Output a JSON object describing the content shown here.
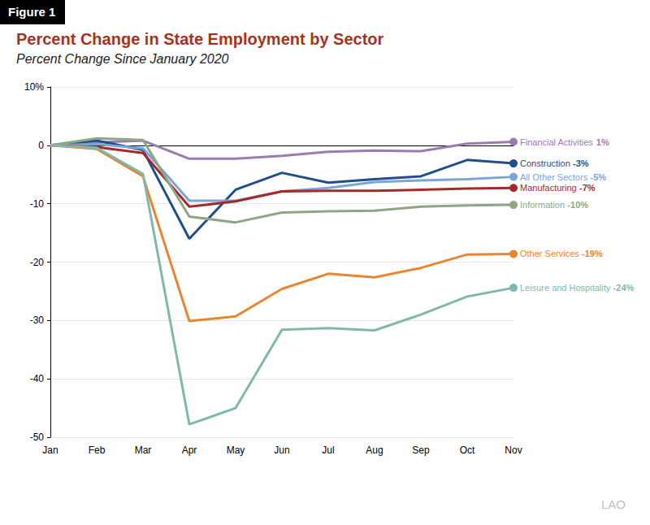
{
  "chart_data": {
    "type": "line",
    "figure_label": "Figure 1",
    "title": "Percent Change in State Employment by Sector",
    "subtitle": "Percent Change Since January 2020",
    "logo": "LAO",
    "categories": [
      "Jan",
      "Feb",
      "Mar",
      "Apr",
      "May",
      "Jun",
      "Jul",
      "Aug",
      "Sep",
      "Oct",
      "Nov"
    ],
    "series": [
      {
        "name": "Financial Activities",
        "color": "#9b7bb0",
        "values": [
          0,
          0.5,
          0.8,
          -2.3,
          -2.3,
          -1.8,
          -1.1,
          -0.9,
          -1.0,
          0.3,
          0.6
        ],
        "value_labels": [
          null,
          null,
          null,
          null,
          null,
          null,
          null,
          null,
          null,
          null,
          "1%"
        ]
      },
      {
        "name": "Construction",
        "color": "#1f4e8c",
        "values": [
          0,
          0.8,
          -0.8,
          -16,
          -7.6,
          -4.7,
          -6.4,
          -5.8,
          -5.3,
          -2.5,
          -3.1
        ],
        "value_labels": [
          null,
          null,
          null,
          null,
          null,
          null,
          null,
          null,
          null,
          null,
          "-3%"
        ]
      },
      {
        "name": "All Other Sectors",
        "color": "#7aa5d8",
        "values": [
          0,
          0.2,
          -0.5,
          -9.5,
          -9.5,
          -7.9,
          -7.3,
          -6.3,
          -6.0,
          -5.8,
          -5.4
        ],
        "value_labels": [
          null,
          null,
          null,
          null,
          null,
          null,
          null,
          null,
          null,
          null,
          "-5%"
        ]
      },
      {
        "name": "Manufacturing",
        "color": "#a32a2a",
        "values": [
          0,
          -0.3,
          -1.3,
          -10.5,
          -9.6,
          -7.9,
          -7.8,
          -7.8,
          -7.6,
          -7.4,
          -7.3
        ],
        "value_labels": [
          null,
          null,
          null,
          null,
          null,
          null,
          null,
          null,
          null,
          null,
          "-7%"
        ]
      },
      {
        "name": "Information",
        "color": "#8ea683",
        "values": [
          0,
          1.2,
          0.9,
          -12.2,
          -13.2,
          -11.5,
          -11.3,
          -11.2,
          -10.5,
          -10.3,
          -10.2
        ],
        "value_labels": [
          null,
          null,
          null,
          null,
          null,
          null,
          null,
          null,
          null,
          null,
          "-10%"
        ]
      },
      {
        "name": "Other Services",
        "color": "#e7862f",
        "values": [
          0,
          -0.6,
          -5.3,
          -30.1,
          -29.3,
          -24.6,
          -22.0,
          -22.6,
          -21.0,
          -18.7,
          -18.6
        ],
        "value_labels": [
          null,
          null,
          null,
          null,
          null,
          null,
          null,
          null,
          null,
          null,
          "-19%"
        ]
      },
      {
        "name": "Leisure and Hospitality",
        "color": "#7fb8ae",
        "values": [
          0,
          -0.4,
          -4.9,
          -47.8,
          -45.0,
          -31.6,
          -31.3,
          -31.7,
          -29.0,
          -25.9,
          -24.4
        ],
        "value_labels": [
          null,
          null,
          null,
          null,
          null,
          null,
          null,
          null,
          null,
          null,
          "-24%"
        ]
      }
    ],
    "ylim": [
      -50,
      10
    ],
    "yticks": [
      -50,
      -40,
      -30,
      -20,
      -10,
      0,
      {
        "value": 10,
        "label": "10%"
      }
    ],
    "grid": true
  }
}
